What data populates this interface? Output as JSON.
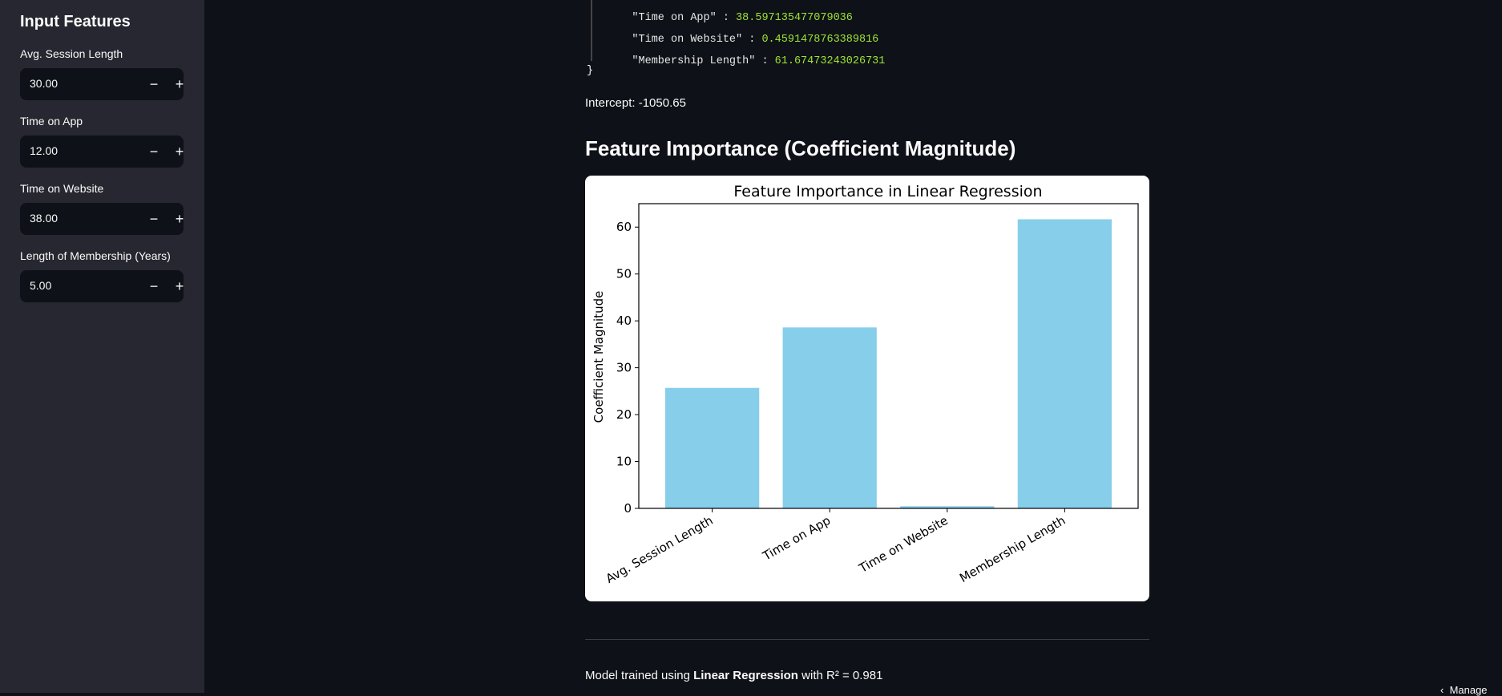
{
  "sidebar": {
    "title": "Input Features",
    "fields": [
      {
        "label": "Avg. Session Length",
        "value": "30.00",
        "minus": "−",
        "plus": "+"
      },
      {
        "label": "Time on App",
        "value": "12.00",
        "minus": "−",
        "plus": "+"
      },
      {
        "label": "Time on Website",
        "value": "38.00",
        "minus": "−",
        "plus": "+"
      },
      {
        "label": "Length of Membership (Years)",
        "value": "5.00",
        "minus": "−",
        "plus": "+"
      }
    ]
  },
  "coefficients": {
    "lines": [
      {
        "key": "\"Time on App\"",
        "value": "38.597135477079036"
      },
      {
        "key": "\"Time on Website\"",
        "value": "0.4591478763389816"
      },
      {
        "key": "\"Membership Length\"",
        "value": "61.67473243026731"
      }
    ],
    "closing_brace": "}"
  },
  "intercept_text": "Intercept: -1050.65",
  "section_heading": "Feature Importance (Coefficient Magnitude)",
  "chart_data": {
    "type": "bar",
    "title": "Feature Importance in Linear Regression",
    "xlabel": "",
    "ylabel": "Coefficient Magnitude",
    "categories": [
      "Avg. Session Length",
      "Time on App",
      "Time on Website",
      "Membership Length"
    ],
    "values": [
      25.7,
      38.6,
      0.46,
      61.67
    ],
    "ylim": [
      0,
      65
    ],
    "yticks": [
      0,
      10,
      20,
      30,
      40,
      50,
      60
    ],
    "bar_color": "#87ceeb",
    "grid": false
  },
  "footer": {
    "prefix": "Model trained using ",
    "model": "Linear Regression",
    "suffix": " with R² = 0.981"
  },
  "manage_label": "Manage",
  "colors": {
    "background": "#0e1117",
    "sidebar": "#262730",
    "code_number": "#9ee335"
  }
}
